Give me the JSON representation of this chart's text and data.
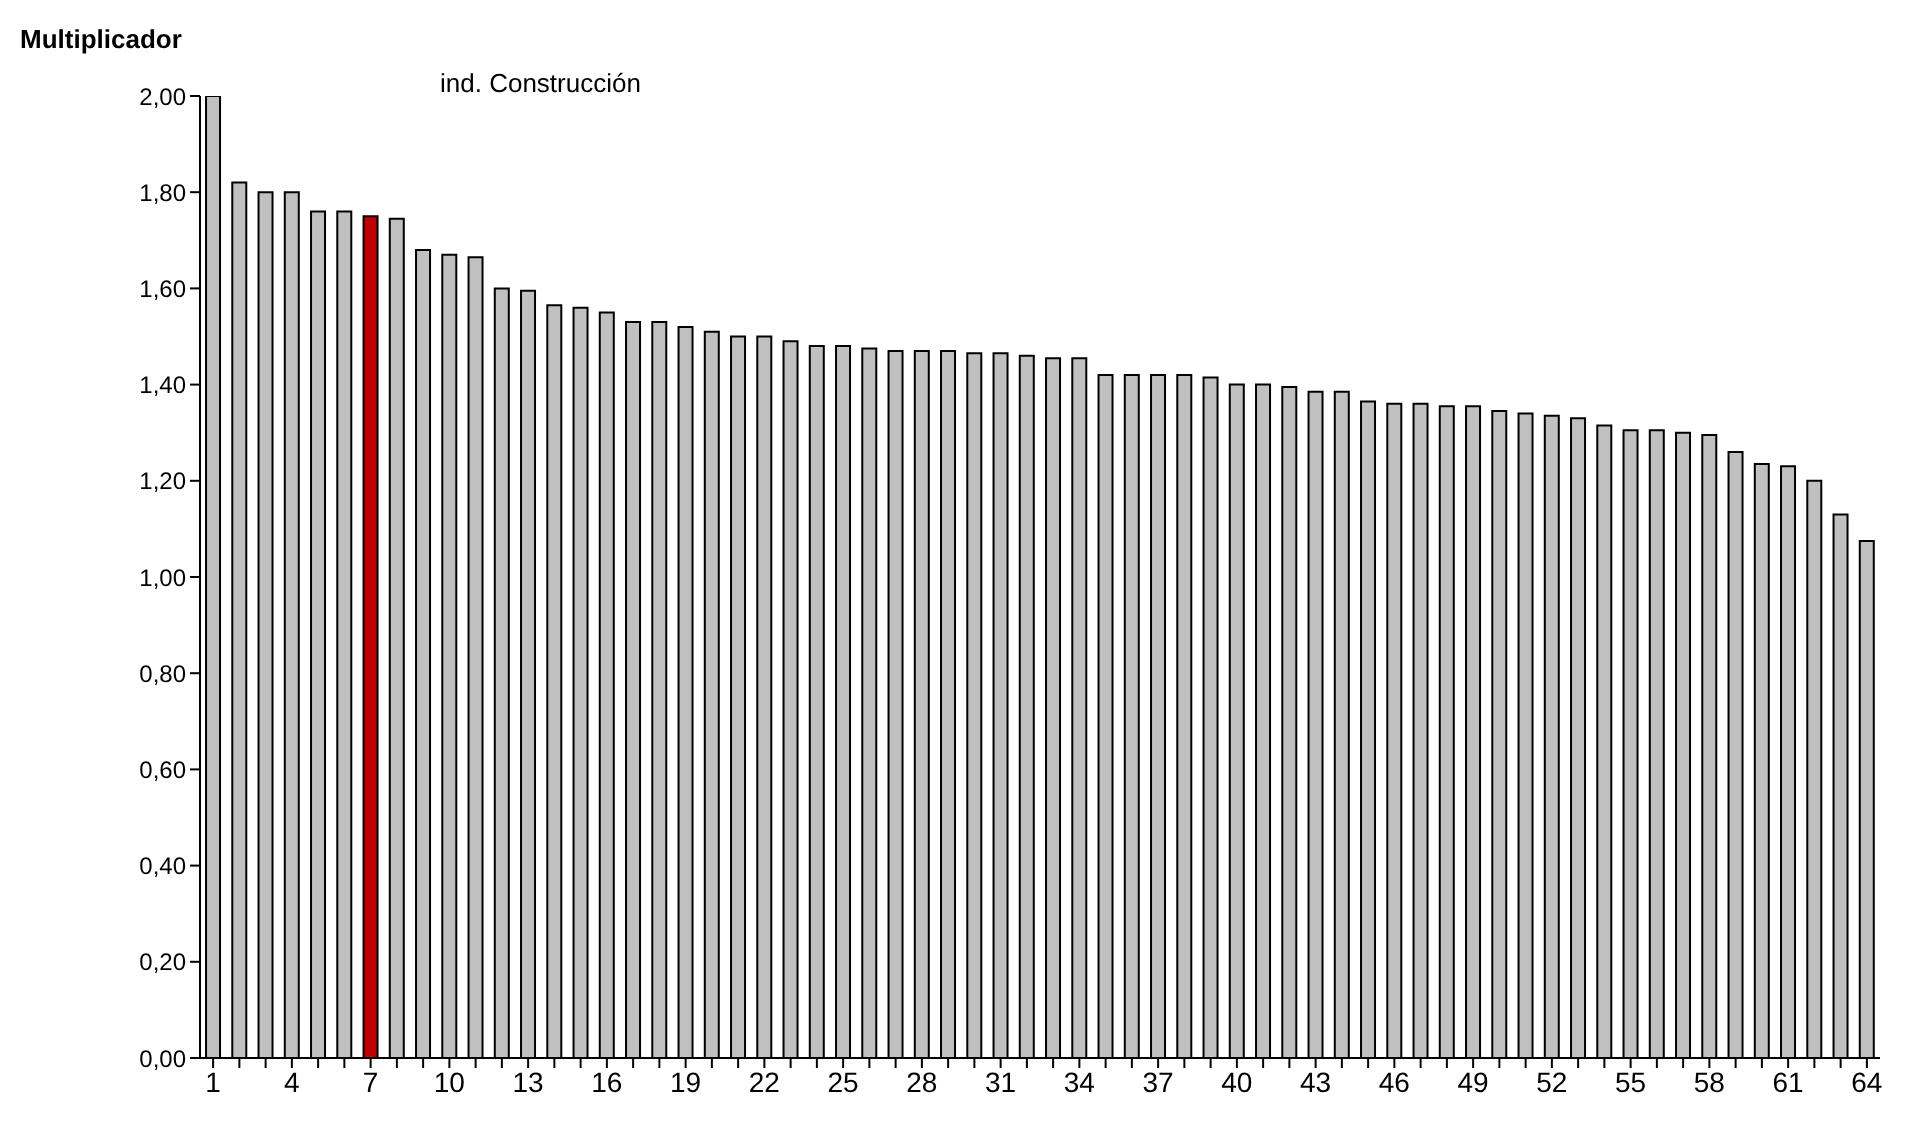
{
  "chart_data": {
    "type": "bar",
    "ylabel": "Multiplicador",
    "annotations": [
      "ind. Construcción"
    ],
    "categories": [
      "1",
      null,
      null,
      "4",
      null,
      null,
      "7",
      null,
      null,
      "10",
      null,
      null,
      "13",
      null,
      null,
      "16",
      null,
      null,
      "19",
      null,
      null,
      "22",
      null,
      null,
      "25",
      null,
      null,
      "28",
      null,
      null,
      "31",
      null,
      null,
      "34",
      null,
      null,
      "37",
      null,
      null,
      "40",
      null,
      null,
      "43",
      null,
      null,
      "46",
      null,
      null,
      "49",
      null,
      null,
      "52",
      null,
      null,
      "55",
      null,
      null,
      "58",
      null,
      null,
      "61",
      null,
      null,
      "64"
    ],
    "values": [
      2.0,
      1.82,
      1.8,
      1.8,
      1.76,
      1.76,
      1.75,
      1.745,
      1.68,
      1.67,
      1.665,
      1.6,
      1.595,
      1.565,
      1.56,
      1.55,
      1.53,
      1.53,
      1.52,
      1.51,
      1.5,
      1.5,
      1.49,
      1.48,
      1.48,
      1.475,
      1.47,
      1.47,
      1.47,
      1.465,
      1.465,
      1.46,
      1.455,
      1.455,
      1.42,
      1.42,
      1.42,
      1.42,
      1.415,
      1.4,
      1.4,
      1.395,
      1.385,
      1.385,
      1.365,
      1.36,
      1.36,
      1.355,
      1.355,
      1.345,
      1.34,
      1.335,
      1.33,
      1.315,
      1.305,
      1.305,
      1.3,
      1.295,
      1.26,
      1.235,
      1.23,
      1.2,
      1.13,
      1.075
    ],
    "colors": [
      "#c0c0c0",
      "#c0c0c0",
      "#c0c0c0",
      "#c0c0c0",
      "#c0c0c0",
      "#c0c0c0",
      "#c00000",
      "#c0c0c0",
      "#c0c0c0",
      "#c0c0c0",
      "#c0c0c0",
      "#c0c0c0",
      "#c0c0c0",
      "#c0c0c0",
      "#c0c0c0",
      "#c0c0c0",
      "#c0c0c0",
      "#c0c0c0",
      "#c0c0c0",
      "#c0c0c0",
      "#c0c0c0",
      "#c0c0c0",
      "#c0c0c0",
      "#c0c0c0",
      "#c0c0c0",
      "#c0c0c0",
      "#c0c0c0",
      "#c0c0c0",
      "#c0c0c0",
      "#c0c0c0",
      "#c0c0c0",
      "#c0c0c0",
      "#c0c0c0",
      "#c0c0c0",
      "#c0c0c0",
      "#c0c0c0",
      "#c0c0c0",
      "#c0c0c0",
      "#c0c0c0",
      "#c0c0c0",
      "#c0c0c0",
      "#c0c0c0",
      "#c0c0c0",
      "#c0c0c0",
      "#c0c0c0",
      "#c0c0c0",
      "#c0c0c0",
      "#c0c0c0",
      "#c0c0c0",
      "#c0c0c0",
      "#c0c0c0",
      "#c0c0c0",
      "#c0c0c0",
      "#c0c0c0",
      "#c0c0c0",
      "#c0c0c0",
      "#c0c0c0",
      "#c0c0c0",
      "#c0c0c0",
      "#c0c0c0",
      "#c0c0c0",
      "#c0c0c0",
      "#c0c0c0",
      "#c0c0c0"
    ],
    "ylim": [
      0,
      2
    ],
    "yticks": [
      {
        "value": 0,
        "label": "0,00"
      },
      {
        "value": 0.2,
        "label": "0,20"
      },
      {
        "value": 0.4,
        "label": "0,40"
      },
      {
        "value": 0.6,
        "label": "0,60"
      },
      {
        "value": 0.8,
        "label": "0,80"
      },
      {
        "value": 1,
        "label": "1,00"
      },
      {
        "value": 1.2,
        "label": "1,20"
      },
      {
        "value": 1.4,
        "label": "1,40"
      },
      {
        "value": 1.6,
        "label": "1,60"
      },
      {
        "value": 1.8,
        "label": "1,80"
      },
      {
        "value": 2,
        "label": "2,00"
      }
    ]
  }
}
